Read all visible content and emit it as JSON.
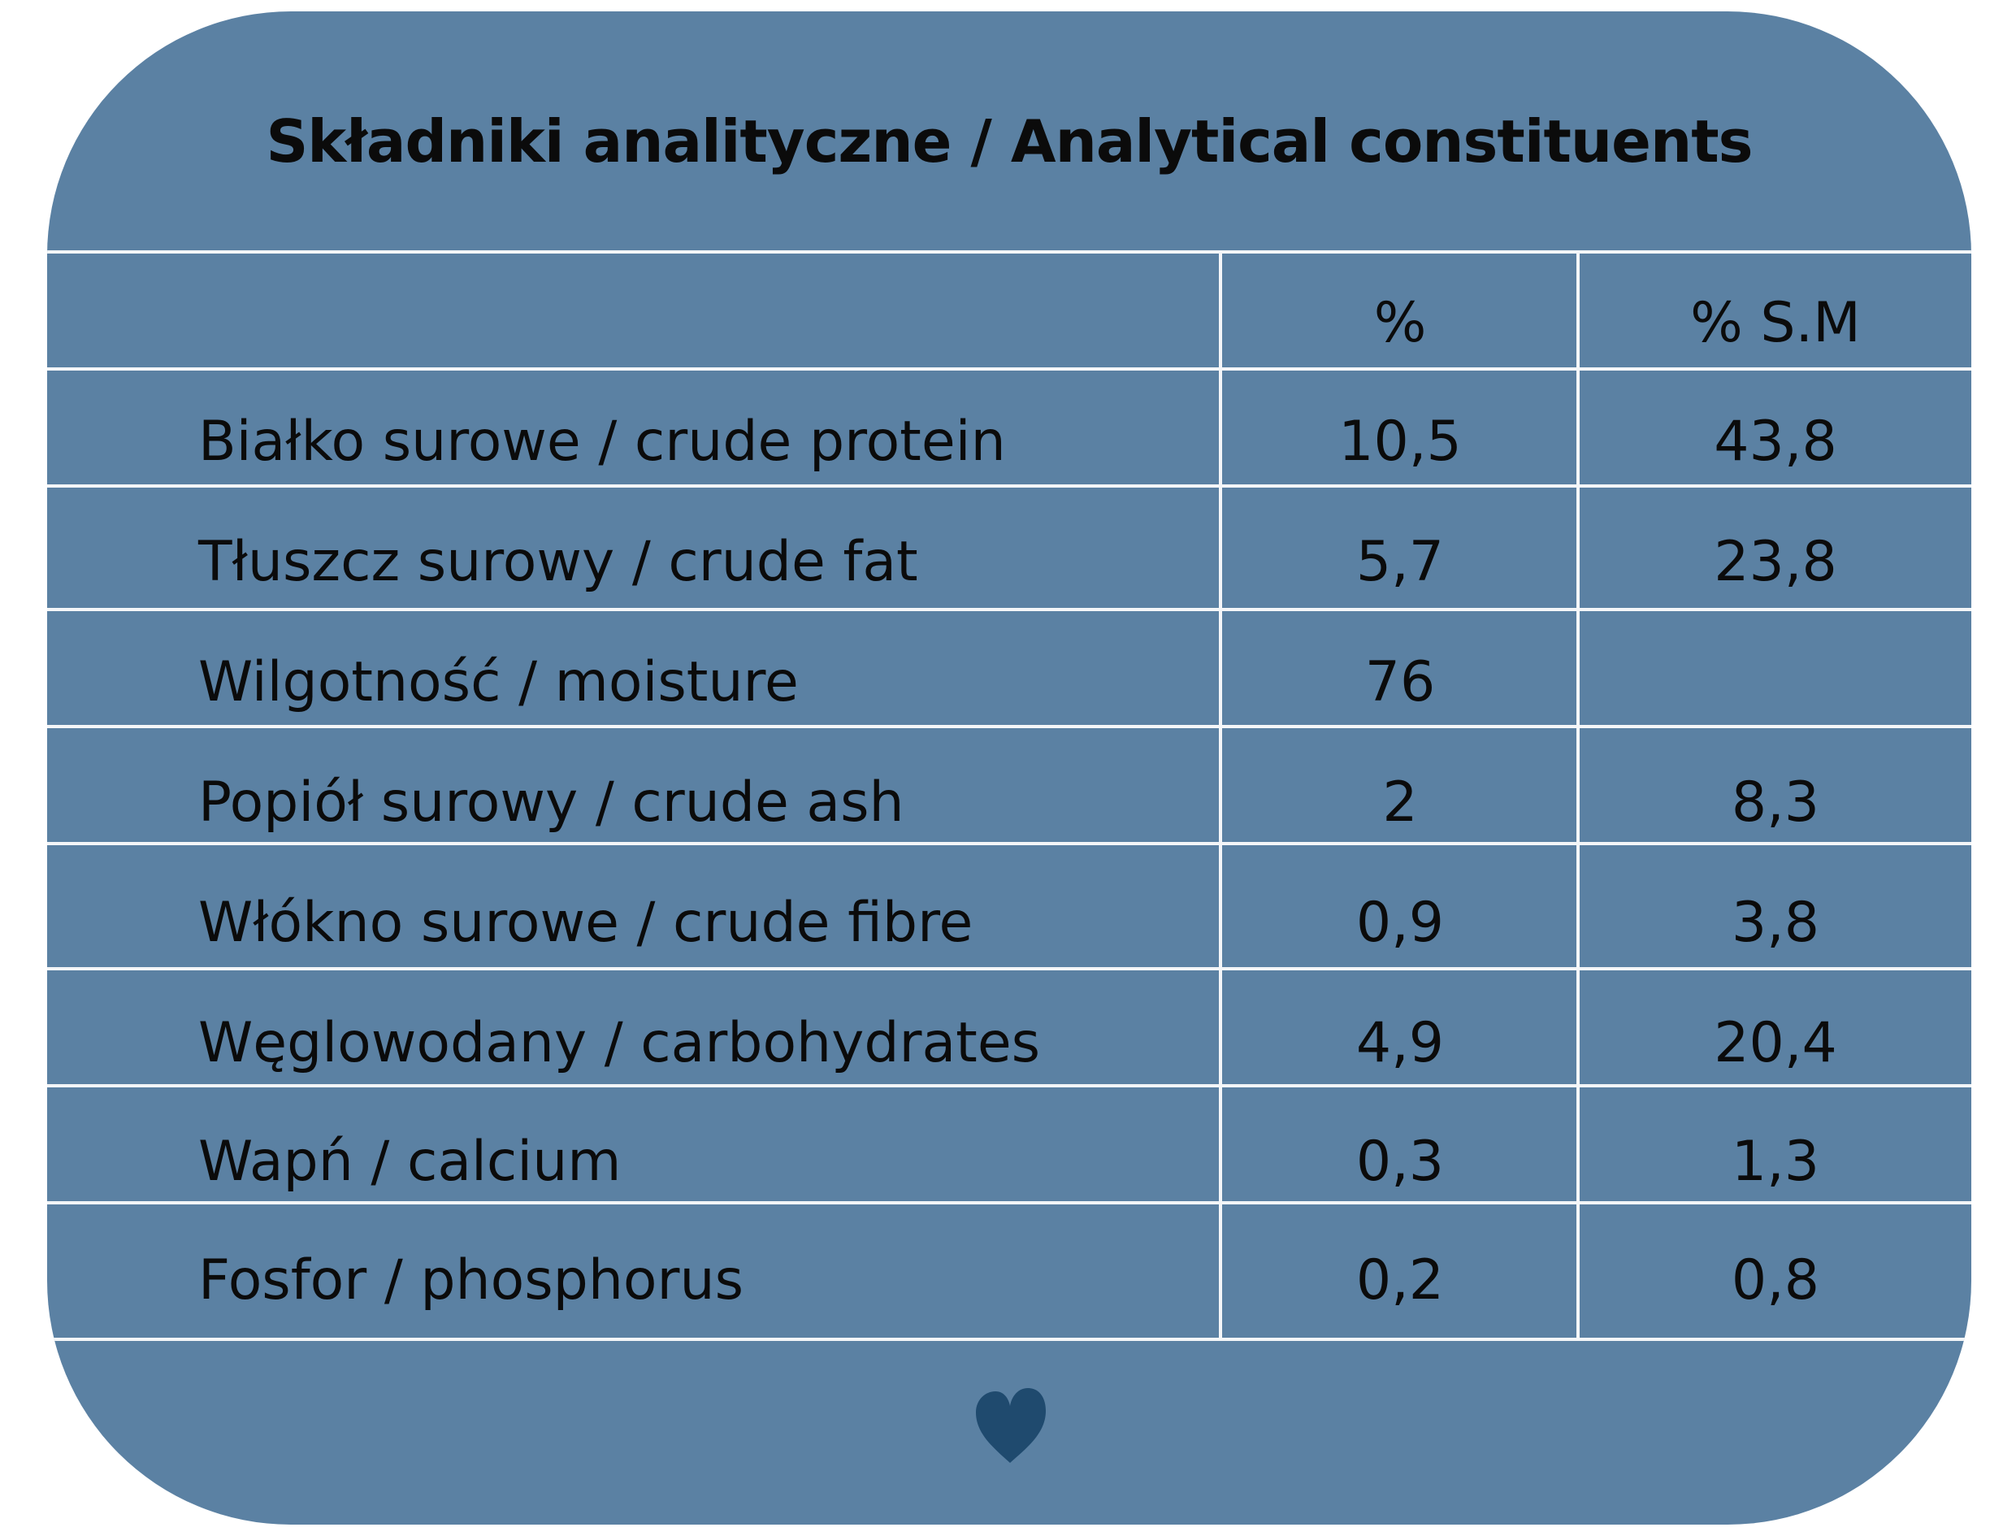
{
  "title": "Składniki analityczne / Analytical constituents",
  "table": {
    "headers": [
      "",
      "%",
      "% S.M"
    ],
    "rows": [
      {
        "label": "Białko surowe / crude protein",
        "pct": "10,5",
        "dm": "43,8"
      },
      {
        "label": "Tłuszcz surowy / crude fat",
        "pct": "5,7",
        "dm": "23,8"
      },
      {
        "label": "Wilgotność / moisture",
        "pct": "76",
        "dm": ""
      },
      {
        "label": "Popiół surowy / crude ash",
        "pct": "2",
        "dm": "8,3"
      },
      {
        "label": "Włókno surowe / crude fibre",
        "pct": "0,9",
        "dm": "3,8"
      },
      {
        "label": "Węglowodany / carbohydrates",
        "pct": "4,9",
        "dm": "20,4"
      },
      {
        "label": "Wapń / calcium",
        "pct": "0,3",
        "dm": "1,3"
      },
      {
        "label": "Fosfor / phosphorus",
        "pct": "0,2",
        "dm": "0,8"
      }
    ]
  },
  "colors": {
    "card_background": "#5b81a3",
    "grid_lines": "#f4f6f8",
    "text": "#0b0b0b",
    "heart": "#1f4a6e"
  },
  "decoration": {
    "bottom_icon": "heart-icon"
  }
}
